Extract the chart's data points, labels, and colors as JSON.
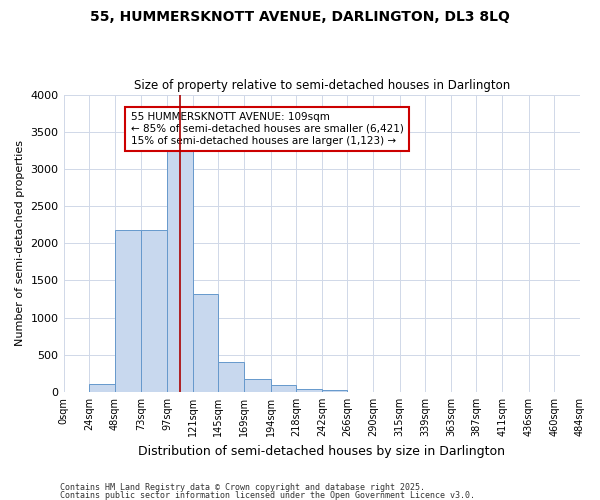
{
  "title": "55, HUMMERSKNOTT AVENUE, DARLINGTON, DL3 8LQ",
  "subtitle": "Size of property relative to semi-detached houses in Darlington",
  "xlabel": "Distribution of semi-detached houses by size in Darlington",
  "ylabel": "Number of semi-detached properties",
  "footnote1": "Contains HM Land Registry data © Crown copyright and database right 2025.",
  "footnote2": "Contains public sector information licensed under the Open Government Licence v3.0.",
  "annotation_title": "55 HUMMERSKNOTT AVENUE: 109sqm",
  "annotation_line1": "← 85% of semi-detached houses are smaller (6,421)",
  "annotation_line2": "15% of semi-detached houses are larger (1,123) →",
  "property_size": 109,
  "bar_edges": [
    0,
    24,
    48,
    73,
    97,
    121,
    145,
    169,
    194,
    218,
    242,
    266,
    290,
    315,
    339,
    363,
    387,
    411,
    436,
    460,
    484
  ],
  "bar_heights": [
    0,
    110,
    2180,
    2180,
    3250,
    1320,
    400,
    170,
    90,
    40,
    30,
    5,
    5,
    0,
    0,
    0,
    0,
    0,
    0,
    0
  ],
  "bar_color": "#c8d8ee",
  "bar_edge_color": "#6699cc",
  "vline_color": "#aa0000",
  "vline_x": 109,
  "annotation_box_color": "#cc0000",
  "background_color": "#ffffff",
  "grid_color": "#d0d8e8",
  "ylim": [
    0,
    4000
  ],
  "yticks": [
    0,
    500,
    1000,
    1500,
    2000,
    2500,
    3000,
    3500,
    4000
  ],
  "xlim": [
    0,
    484
  ]
}
